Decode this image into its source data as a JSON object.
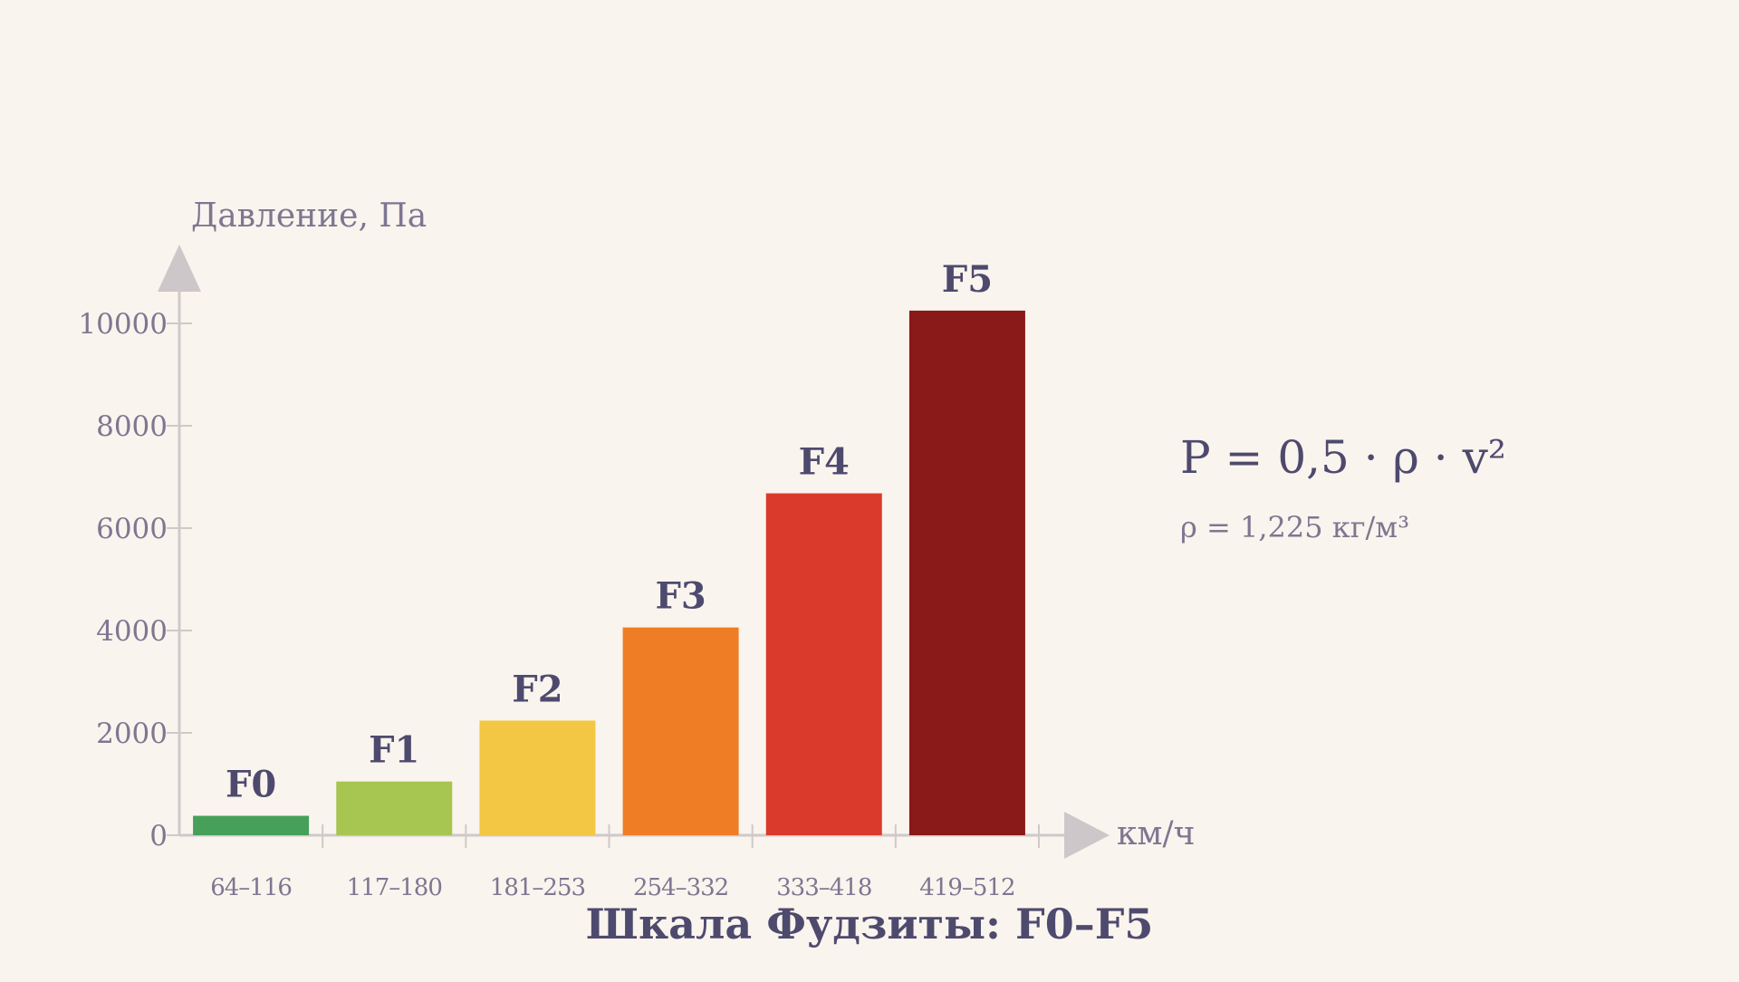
{
  "chart_data": {
    "type": "bar",
    "title": "Шкала Фудзиты: F0–F5",
    "ylabel": "Давление, Па",
    "xlabel": "км/ч",
    "ylim": [
      0,
      10000
    ],
    "yticks": [
      0,
      2000,
      4000,
      6000,
      8000,
      10000
    ],
    "categories": [
      "64–116",
      "117–180",
      "181–253",
      "254–332",
      "333–418",
      "419–512"
    ],
    "bar_labels": [
      "F0",
      "F1",
      "F2",
      "F3",
      "F4",
      "F5"
    ],
    "values": [
      380,
      1050,
      2240,
      4060,
      6680,
      10250
    ],
    "colors": [
      "#47a05a",
      "#a6c551",
      "#f3c744",
      "#ef7d25",
      "#da3a2b",
      "#8a1919"
    ],
    "grid": false
  },
  "annotations": {
    "formula": "P = 0,5 · ρ · v²",
    "density": "ρ = 1,225 кг/м³"
  }
}
